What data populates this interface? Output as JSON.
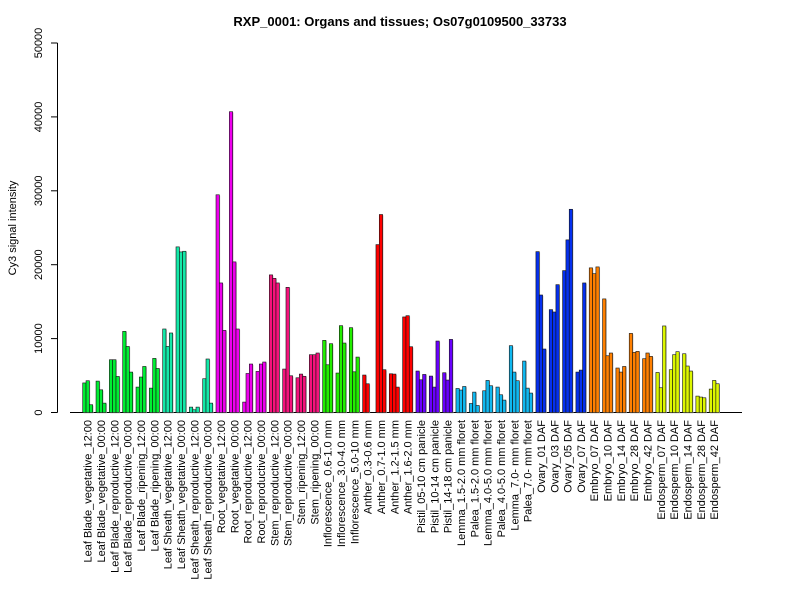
{
  "chart_data": {
    "type": "bar",
    "title": "RXP_0001: Organs and tissues; Os07g0109500_33733",
    "xlabel": "",
    "ylabel": "Cy3 signal intensity",
    "ylim": [
      0,
      50000
    ],
    "yticks": [
      "0",
      "10000",
      "20000",
      "30000",
      "40000",
      "50000"
    ],
    "grid": false,
    "categories": [
      "Leaf Blade_vegetative_12:00",
      "Leaf Blade_vegetative_00:00",
      "Leaf Blade_reproductive_12:00",
      "Leaf Blade_reproductive_00:00",
      "Leaf Blade_ripening_12:00",
      "Leaf Blade_ripening_00:00",
      "Leaf Sheath_vegetative_12:00",
      "Leaf Sheath_vegetative_00:00",
      "Leaf Sheath_reproductive_12:00",
      "Leaf Sheath_reproductive_00:00",
      "Root_vegetative_12:00",
      "Root_vegetative_00:00",
      "Root_reproductive_12:00",
      "Root_reproductive_00:00",
      "Stem_reproductive_12:00",
      "Stem_reproductive_00:00",
      "Stem_ripening_12:00",
      "Stem_ripening_00:00",
      "Inflorescence_0.6-1.0 mm",
      "Inflorescence_3.0-4.0 mm",
      "Inflorescence_5.0-10 mm",
      "Anther_0.3-0.6 mm",
      "Anther_0.7-1.0 mm",
      "Anther_1.2-1.5 mm",
      "Anther_1.6-2.0 mm",
      "Pistil_05-10 cm panicle",
      "Pistil_10-14 cm panicle",
      "Pistil_14-18 cm panicle",
      "Lemma_1.5-2.0 mm floret",
      "Palea_1.5-2.0 mm floret",
      "Lemma_4.0-5.0 mm floret",
      "Palea_4.0-5.0 mm floret",
      "Lemma_7.0- mm floret",
      "Palea_7.0- mm floret",
      "Ovary_01 DAF",
      "Ovary_03 DAF",
      "Ovary_05 DAF",
      "Ovary_07 DAF",
      "Embryo_07 DAF",
      "Embryo_10 DAF",
      "Embryo_14 DAF",
      "Embryo_28 DAF",
      "Embryo_42 DAF",
      "Endosperm_07 DAF",
      "Endosperm_10 DAF",
      "Endosperm_14 DAF",
      "Endosperm_28 DAF",
      "Endosperm_42 DAF"
    ],
    "values": [
      [
        4000,
        4300,
        1050
      ],
      [
        4250,
        3070,
        1270
      ],
      [
        7140,
        7140,
        4880
      ],
      [
        10980,
        8940,
        5470
      ],
      [
        3440,
        4800,
        6230
      ],
      [
        3300,
        7320,
        5960
      ],
      [
        11300,
        8940,
        10760
      ],
      [
        22410,
        21730,
        21820
      ],
      [
        730,
        370,
        730
      ],
      [
        4570,
        7240,
        1270
      ],
      [
        29460,
        17530,
        11110
      ],
      [
        40700,
        20380,
        11300
      ],
      [
        1410,
        5280,
        6560
      ],
      [
        5560,
        6560,
        6830
      ],
      [
        18620,
        18160,
        17530
      ],
      [
        5880,
        16940,
        4970
      ],
      [
        4700,
        5200,
        4900
      ],
      [
        7820,
        7820,
        8050
      ],
      [
        9760,
        6460,
        9310
      ],
      [
        5340,
        11750,
        9400
      ],
      [
        11480,
        5510,
        7500
      ],
      [
        5070,
        3890,
        null
      ],
      [
        22720,
        26790,
        5790
      ],
      [
        5240,
        5200,
        3440
      ],
      [
        12930,
        13100,
        8900
      ],
      [
        5610,
        4430,
        5150
      ],
      [
        4930,
        3440,
        9670
      ],
      [
        5380,
        4390,
        9890
      ],
      [
        3250,
        3040,
        3520
      ],
      [
        1220,
        2760,
        950
      ],
      [
        2940,
        4340,
        3620
      ],
      [
        3440,
        2400,
        1680
      ],
      [
        9040,
        5470,
        4300
      ],
      [
        6960,
        3300,
        2630
      ],
      [
        21770,
        15900,
        8590
      ],
      [
        13920,
        13600,
        17300
      ],
      [
        19200,
        23360,
        27500
      ],
      [
        5470,
        5740,
        17530
      ],
      [
        19570,
        18790,
        19700
      ],
      [
        15370,
        7680,
        8050
      ],
      [
        6020,
        5470,
        6230
      ],
      [
        10700,
        8130,
        8270
      ],
      [
        7280,
        8050,
        7590
      ],
      [
        5420,
        3350,
        11710
      ],
      [
        5790,
        7820,
        8230
      ],
      [
        7950,
        6290,
        5610
      ],
      [
        2220,
        2090,
        1990
      ],
      [
        3170,
        4340,
        3890
      ]
    ],
    "colors": [
      "#00ee33",
      "#00ee33",
      "#00ee33",
      "#00ee33",
      "#00ee33",
      "#00ee33",
      "#14e8a8",
      "#14e8a8",
      "#14e8a8",
      "#14e8a8",
      "#ee00ee",
      "#ee00ee",
      "#ee00ee",
      "#ee00ee",
      "#f5127c",
      "#f5127c",
      "#f5127c",
      "#f5127c",
      "#22ee00",
      "#22ee00",
      "#22ee00",
      "#ff0000",
      "#ff0000",
      "#ff0000",
      "#ff0000",
      "#6a00ff",
      "#6a00ff",
      "#6a00ff",
      "#10b8f0",
      "#10b8f0",
      "#10b8f0",
      "#10b8f0",
      "#10b8f0",
      "#10b8f0",
      "#0530f0",
      "#0530f0",
      "#0530f0",
      "#0530f0",
      "#ff8000",
      "#ff8000",
      "#ff8000",
      "#ff8000",
      "#ff8000",
      "#ddf700",
      "#ddf700",
      "#ddf700",
      "#ddf700",
      "#ddf700"
    ]
  }
}
